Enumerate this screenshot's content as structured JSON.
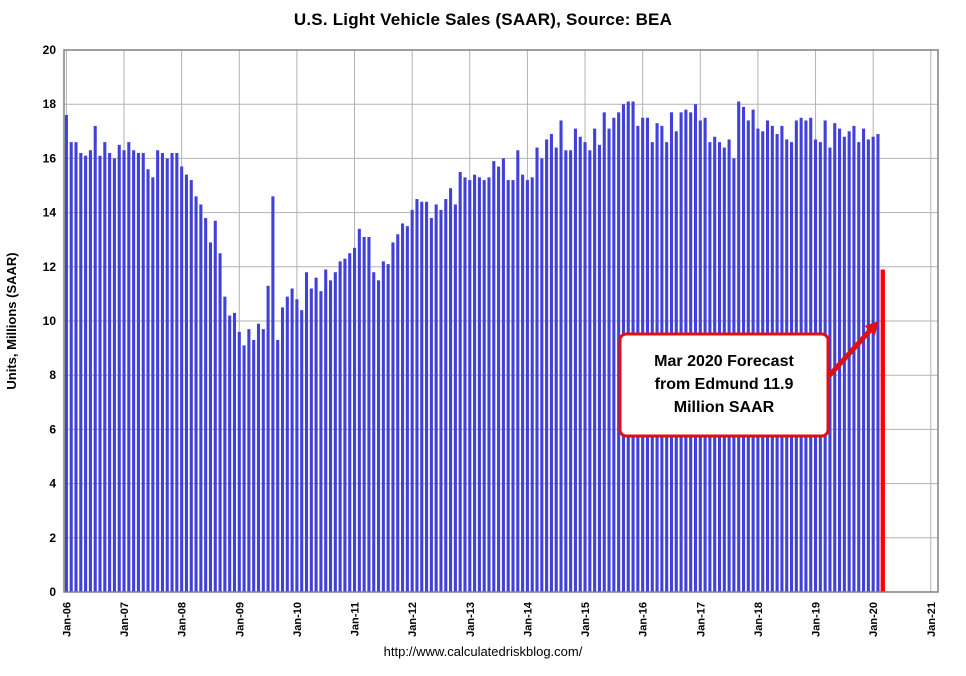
{
  "chart_data": {
    "type": "bar",
    "title": "U.S. Light Vehicle Sales (SAAR), Source: BEA",
    "ylabel": "Units, Millions (SAAR)",
    "ylim": [
      0,
      20
    ],
    "ytick_step": 2,
    "grid": true,
    "legend": "none",
    "x_frequency": "monthly",
    "x_tick_labels": [
      "Jan-06",
      "Jan-07",
      "Jan-08",
      "Jan-09",
      "Jan-10",
      "Jan-11",
      "Jan-12",
      "Jan-13",
      "Jan-14",
      "Jan-15",
      "Jan-16",
      "Jan-17",
      "Jan-18",
      "Jan-19",
      "Jan-20",
      "Jan-21"
    ],
    "series": [
      {
        "name": "U.S. Light Vehicle Sales (SAAR)",
        "color": "#4141d9",
        "x_start": "Jan-2006",
        "x_end": "Feb-2020",
        "values": [
          17.6,
          16.6,
          16.6,
          16.2,
          16.1,
          16.3,
          17.2,
          16.1,
          16.6,
          16.2,
          16.0,
          16.5,
          16.3,
          16.6,
          16.3,
          16.2,
          16.2,
          15.6,
          15.3,
          16.3,
          16.2,
          16.0,
          16.2,
          16.2,
          15.7,
          15.4,
          15.2,
          14.6,
          14.3,
          13.8,
          12.9,
          13.7,
          12.5,
          10.9,
          10.2,
          10.3,
          9.6,
          9.1,
          9.7,
          9.3,
          9.9,
          9.7,
          11.3,
          14.6,
          9.3,
          10.5,
          10.9,
          11.2,
          10.8,
          10.4,
          11.8,
          11.2,
          11.6,
          11.1,
          11.9,
          11.5,
          11.8,
          12.2,
          12.3,
          12.5,
          12.7,
          13.4,
          13.1,
          13.1,
          11.8,
          11.5,
          12.2,
          12.1,
          12.9,
          13.2,
          13.6,
          13.5,
          14.1,
          14.5,
          14.4,
          14.4,
          13.8,
          14.3,
          14.1,
          14.5,
          14.9,
          14.3,
          15.5,
          15.3,
          15.2,
          15.4,
          15.3,
          15.2,
          15.3,
          15.9,
          15.7,
          16.0,
          15.2,
          15.2,
          16.3,
          15.4,
          15.2,
          15.3,
          16.4,
          16.0,
          16.7,
          16.9,
          16.4,
          17.4,
          16.3,
          16.3,
          17.1,
          16.8,
          16.6,
          16.3,
          17.1,
          16.5,
          17.7,
          17.1,
          17.5,
          17.7,
          18.0,
          18.1,
          18.1,
          17.2,
          17.5,
          17.5,
          16.6,
          17.3,
          17.2,
          16.6,
          17.7,
          17.0,
          17.7,
          17.8,
          17.7,
          18.0,
          17.4,
          17.5,
          16.6,
          16.8,
          16.6,
          16.4,
          16.7,
          16.0,
          18.1,
          17.9,
          17.4,
          17.8,
          17.1,
          17.0,
          17.4,
          17.2,
          16.9,
          17.2,
          16.7,
          16.6,
          17.4,
          17.5,
          17.4,
          17.5,
          16.7,
          16.6,
          17.4,
          16.4,
          17.3,
          17.1,
          16.8,
          17.0,
          17.2,
          16.6,
          17.1,
          16.7,
          16.8,
          16.9
        ]
      }
    ],
    "forecast": {
      "label": "Mar-2020",
      "value": 11.9,
      "color": "#ff0000"
    },
    "annotation": {
      "lines": [
        "Mar 2020 Forecast",
        "from Edmund 11.9",
        "Million SAAR"
      ],
      "border_color": "#e01010",
      "arrow_color": "#e01010"
    },
    "colors": {
      "grid": "#b3b3b3",
      "axis": "#808080",
      "background": "#ffffff"
    }
  },
  "footer": {
    "url": "http://www.calculatedriskblog.com/"
  }
}
